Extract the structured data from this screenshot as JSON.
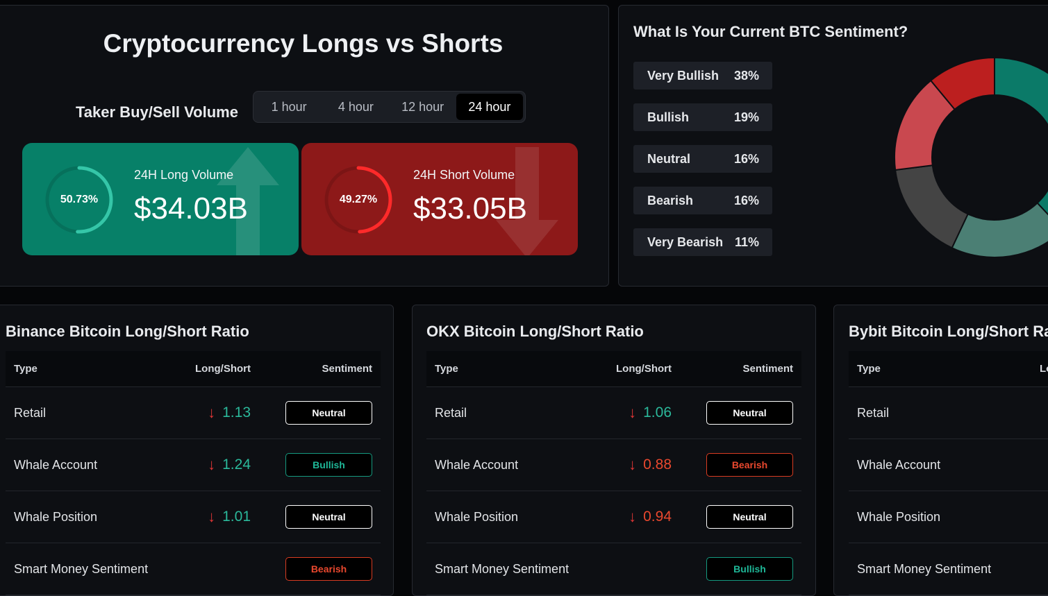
{
  "top": {
    "title": "Cryptocurrency Longs vs Shorts",
    "taker_label": "Taker Buy/Sell Volume",
    "tabs": [
      {
        "label": "1 hour",
        "active": false
      },
      {
        "label": "4 hour",
        "active": false
      },
      {
        "label": "12 hour",
        "active": false
      },
      {
        "label": "24 hour",
        "active": true
      }
    ],
    "long": {
      "percent_label": "50.73%",
      "percent": 50.73,
      "title": "24H Long Volume",
      "value": "$34.03B",
      "color": "#078068",
      "ring_color": "#35c6a8"
    },
    "short": {
      "percent_label": "49.27%",
      "percent": 49.27,
      "title": "24H Short Volume",
      "value": "$33.05B",
      "color": "#8d1919",
      "ring_color": "#ff2a2a"
    }
  },
  "sentiment": {
    "title": "What Is Your Current BTC Sentiment?",
    "items": [
      {
        "label": "Very Bullish",
        "value": "38%",
        "pct": 38,
        "color": "#0b7a68"
      },
      {
        "label": "Bullish",
        "value": "19%",
        "pct": 19,
        "color": "#4b7f74"
      },
      {
        "label": "Neutral",
        "value": "16%",
        "pct": 16,
        "color": "#444444"
      },
      {
        "label": "Bearish",
        "value": "16%",
        "pct": 16,
        "color": "#c9484f"
      },
      {
        "label": "Very Bearish",
        "value": "11%",
        "pct": 11,
        "color": "#bc1f1f"
      }
    ]
  },
  "columns": {
    "type": "Type",
    "ratio": "Long/Short",
    "sentiment": "Sentiment"
  },
  "binance": {
    "title": "Binance Bitcoin Long/Short Ratio",
    "rows": [
      {
        "type": "Retail",
        "ratio": "1.13",
        "sentiment": "Neutral"
      },
      {
        "type": "Whale Account",
        "ratio": "1.24",
        "sentiment": "Bullish"
      },
      {
        "type": "Whale Position",
        "ratio": "1.01",
        "sentiment": "Neutral"
      },
      {
        "type": "Smart Money Sentiment",
        "ratio": "",
        "sentiment": "Bearish"
      }
    ]
  },
  "okx": {
    "title": "OKX Bitcoin Long/Short Ratio",
    "rows": [
      {
        "type": "Retail",
        "ratio": "1.06",
        "sentiment": "Neutral"
      },
      {
        "type": "Whale Account",
        "ratio": "0.88",
        "sentiment": "Bearish"
      },
      {
        "type": "Whale Position",
        "ratio": "0.94",
        "sentiment": "Neutral"
      },
      {
        "type": "Smart Money Sentiment",
        "ratio": "",
        "sentiment": "Bullish"
      }
    ]
  },
  "bybit": {
    "title": "Bybit Bitcoin Long/Short Ra",
    "ratio_header": "Lo",
    "rows": [
      {
        "type": "Retail"
      },
      {
        "type": "Whale Account"
      },
      {
        "type": "Whale Position"
      },
      {
        "type": "Smart Money Sentiment"
      }
    ]
  },
  "colors": {
    "up": "#2bb99b",
    "down_arrow": "#e23636",
    "bear_value": "#e9482e"
  }
}
